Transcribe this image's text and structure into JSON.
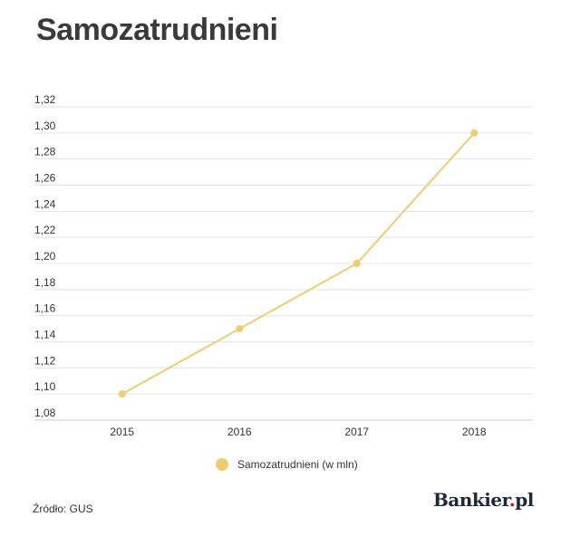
{
  "title": "Samozatrudnieni",
  "source": "Źródło: GUS",
  "logo": {
    "name": "Bankier",
    "dot": ".",
    "suffix": "pl"
  },
  "legend": {
    "label": "Samozatrudnieni (w mln)"
  },
  "colors": {
    "series": "#f2cb6c",
    "grid": "#e3e3e3",
    "axis": "#cccccc"
  },
  "chart_data": {
    "type": "line",
    "categories": [
      "2015",
      "2016",
      "2017",
      "2018"
    ],
    "series": [
      {
        "name": "Samozatrudnieni (w mln)",
        "values": [
          1.1,
          1.15,
          1.2,
          1.3
        ]
      }
    ],
    "yticks": [
      "1,08",
      "1,10",
      "1,12",
      "1,14",
      "1,16",
      "1,18",
      "1,20",
      "1,22",
      "1,24",
      "1,26",
      "1,28",
      "1,30",
      "1,32"
    ],
    "ylim": [
      1.08,
      1.32
    ],
    "grid": true,
    "legend_position": "bottom"
  }
}
